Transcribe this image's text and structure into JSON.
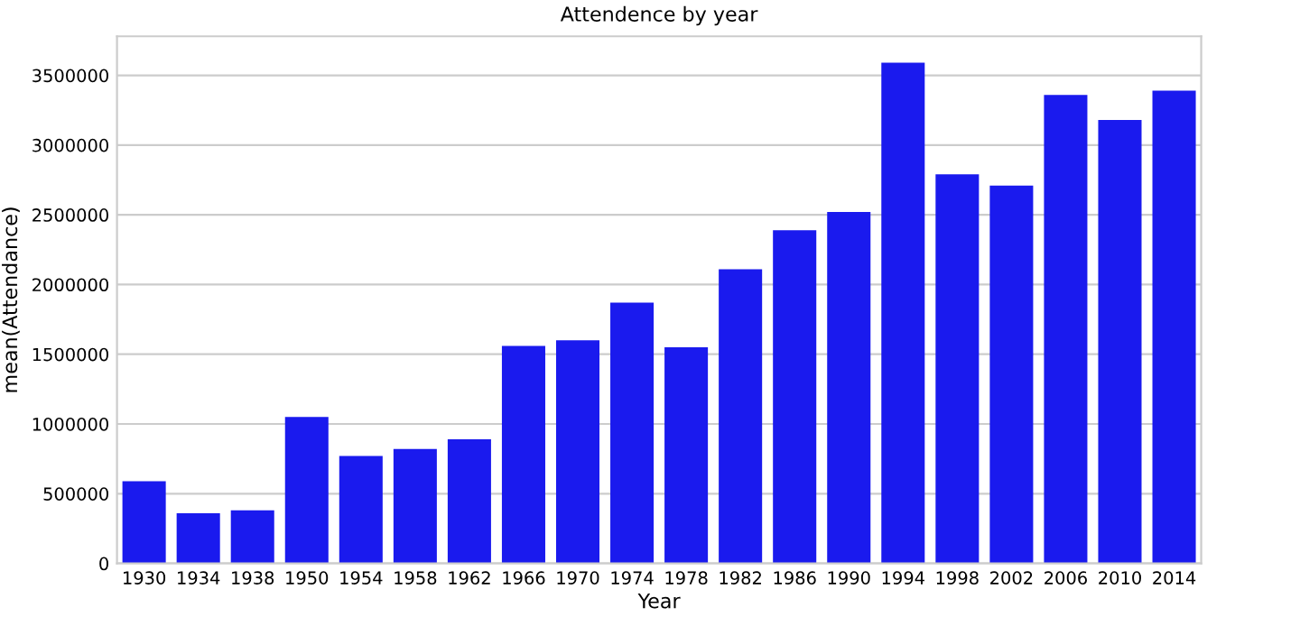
{
  "chart_data": {
    "type": "bar",
    "title": "Attendence by year",
    "xlabel": "Year",
    "ylabel": "mean(Attendance)",
    "categories": [
      "1930",
      "1934",
      "1938",
      "1950",
      "1954",
      "1958",
      "1962",
      "1966",
      "1970",
      "1974",
      "1978",
      "1982",
      "1986",
      "1990",
      "1994",
      "1998",
      "2002",
      "2006",
      "2010",
      "2014"
    ],
    "values": [
      590000,
      360000,
      380000,
      1050000,
      770000,
      820000,
      890000,
      1560000,
      1600000,
      1870000,
      1550000,
      2110000,
      2390000,
      2520000,
      3590000,
      2790000,
      2710000,
      3360000,
      3180000,
      3390000
    ],
    "color": "#1a1aee",
    "ylim": [
      0,
      3780000
    ],
    "yticks": [
      0,
      500000,
      1000000,
      1500000,
      2000000,
      2500000,
      3000000,
      3500000
    ],
    "grid": "y"
  }
}
